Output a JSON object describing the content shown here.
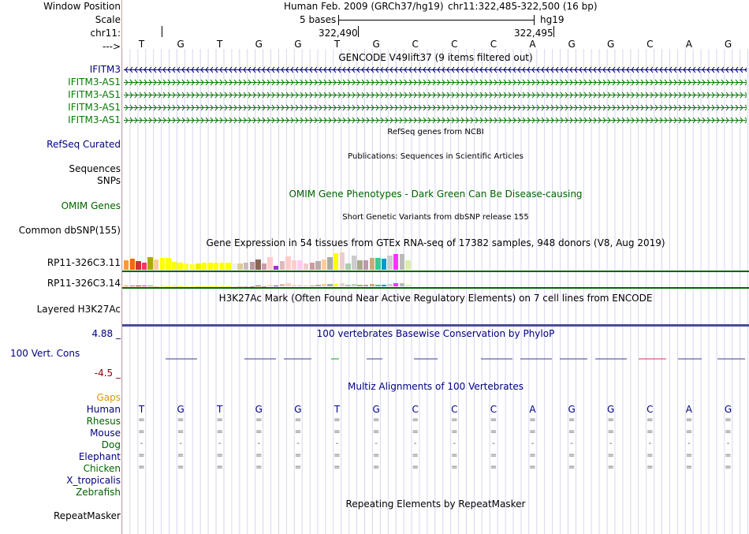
{
  "header": {
    "window_position_label": "Window Position",
    "scale_label": "Scale",
    "chrom_label": "chr11:",
    "arrow_label": "--->",
    "assembly_text": "Human Feb. 2009 (GRCh37/hg19)",
    "position_text": "chr11:322,485-322,500 (16 bp)",
    "scale_bases": "5 bases",
    "scale_db": "hg19",
    "tick_left": "322,490",
    "tick_right": "322,495"
  },
  "sequence": [
    "T",
    "G",
    "T",
    "G",
    "G",
    "T",
    "G",
    "C",
    "C",
    "C",
    "A",
    "G",
    "G",
    "C",
    "A",
    "G"
  ],
  "tracks": {
    "gencode": {
      "title": "GENCODE V49lift37 (9 items filtered out)",
      "items": [
        {
          "name": "IFITM3",
          "strand": "-",
          "color": "#000080"
        },
        {
          "name": "IFITM3-AS1",
          "strand": "+",
          "color": "#0a7a0a"
        },
        {
          "name": "IFITM3-AS1",
          "strand": "+",
          "color": "#0a7a0a"
        },
        {
          "name": "IFITM3-AS1",
          "strand": "+",
          "color": "#0a7a0a"
        },
        {
          "name": "IFITM3-AS1",
          "strand": "+",
          "color": "#0a7a0a"
        }
      ]
    },
    "refseq": {
      "title": "RefSeq genes from NCBI",
      "label": "RefSeq Curated"
    },
    "publications": {
      "title": "Publications: Sequences in Scientific Articles",
      "label1": "Sequences",
      "label2": "SNPs"
    },
    "omim": {
      "title": "OMIM Gene Phenotypes - Dark Green Can Be Disease-causing",
      "label": "OMIM Genes"
    },
    "dbsnp": {
      "title": "Short Genetic Variants from dbSNP release 155",
      "label": "Common dbSNP(155)"
    },
    "gtex": {
      "title": "Gene Expression in 54 tissues from GTEx RNA-seq of 17382 samples, 948 donors (V8, Aug 2019)",
      "gene1": "RP11-326C3.11",
      "gene2": "RP11-326C3.14",
      "tissue_colors": [
        "#ff9933",
        "#ff6600",
        "#cc3333",
        "#ff3366",
        "#aaaa00",
        "#ffcc99",
        "#ffff00",
        "#ffff00",
        "#ffff00",
        "#ffff00",
        "#ffff33",
        "#ffff33",
        "#eeee00",
        "#ffff00",
        "#ffff00",
        "#ffff00",
        "#ffff00",
        "#ffff00",
        "#eeeeee",
        "#ddcc99",
        "#ccbbbb",
        "#bb9999",
        "#886655",
        "#cc99aa",
        "#ffcccc",
        "#9933cc",
        "#ddbbbb",
        "#ffcccc",
        "#ffcccc",
        "#ffccee",
        "#eecccc",
        "#cc9999",
        "#bbaaaa",
        "#ffcc99",
        "#aaaaaa",
        "#ffff00",
        "#eecccc",
        "#aaccaa",
        "#cccccc",
        "#aaaa88",
        "#bb99aa",
        "#ccaa77",
        "#33cc99",
        "#0099cc",
        "#cccccc",
        "#ff33ff",
        "#bbbbbb",
        "#ddeeaa"
      ],
      "values1": [
        12,
        14,
        11,
        9,
        16,
        13,
        15,
        15,
        10,
        9,
        8,
        7,
        8,
        9,
        9,
        9,
        9,
        9,
        8,
        8,
        9,
        10,
        13,
        8,
        16,
        5,
        11,
        17,
        12,
        12,
        8,
        9,
        11,
        13,
        16,
        21,
        22,
        8,
        18,
        12,
        12,
        15,
        15,
        14,
        18,
        20,
        20,
        12
      ],
      "values2": [
        3,
        3,
        3,
        3,
        2,
        1,
        2,
        1,
        2,
        1,
        1,
        1,
        1,
        1,
        1,
        1,
        1,
        1,
        1,
        1,
        1,
        1,
        2,
        1,
        5,
        3,
        6,
        8,
        5,
        5,
        3,
        3,
        4,
        6,
        6,
        7,
        8,
        4,
        7,
        5,
        5,
        6,
        5,
        5,
        7,
        8,
        8,
        5
      ]
    },
    "h3k27ac": {
      "title": "H3K27Ac Mark (Often Found Near Active Regulatory Elements) on 7 cell lines from ENCODE",
      "label": "Layered H3K27Ac"
    },
    "phylop": {
      "title": "100 vertebrates Basewise Conservation by PhyloP",
      "label": "100 Vert. Cons",
      "max": "4.88 _",
      "min": "-4.5 _"
    },
    "multiz": {
      "title": "Multiz Alignments of 100 Vertebrates",
      "gaps_label": "Gaps",
      "species": [
        {
          "name": "Human",
          "row": [
            "T",
            "G",
            "T",
            "G",
            "G",
            "T",
            "G",
            "C",
            "C",
            "C",
            "A",
            "G",
            "G",
            "C",
            "A",
            "G"
          ]
        },
        {
          "name": "Rhesus",
          "row": [
            "=",
            "=",
            "=",
            "=",
            "=",
            "=",
            "=",
            "=",
            "=",
            "=",
            "=",
            "=",
            "=",
            "=",
            "=",
            "="
          ]
        },
        {
          "name": "Mouse",
          "row": [
            "=",
            "=",
            "=",
            "=",
            "=",
            "=",
            "=",
            "=",
            "=",
            "=",
            "=",
            "=",
            "=",
            "=",
            "=",
            "="
          ]
        },
        {
          "name": "Dog",
          "row": [
            "-",
            "-",
            "-",
            "-",
            "-",
            "-",
            "-",
            "-",
            "-",
            "-",
            "-",
            "-",
            "-",
            "-",
            "-",
            "-"
          ]
        },
        {
          "name": "Elephant",
          "row": [
            "=",
            "=",
            "=",
            "=",
            "=",
            "=",
            "=",
            "=",
            "=",
            "=",
            "=",
            "=",
            "=",
            "=",
            "=",
            "="
          ]
        },
        {
          "name": "Chicken",
          "row": [
            "=",
            "=",
            "=",
            "=",
            "=",
            "=",
            "=",
            "=",
            "=",
            "=",
            "=",
            "=",
            "=",
            "=",
            "=",
            "="
          ]
        },
        {
          "name": "X_tropicalis",
          "row": []
        },
        {
          "name": "Zebrafish",
          "row": []
        }
      ]
    },
    "repeatmasker": {
      "title": "Repeating Elements by RepeatMasker",
      "label": "RepeatMasker"
    }
  },
  "colors": {
    "navy": "#000080",
    "green": "#006400",
    "gencode_green": "#0a7a0a",
    "divider": "#c8a3a3",
    "grid": "#d6d6f0"
  }
}
